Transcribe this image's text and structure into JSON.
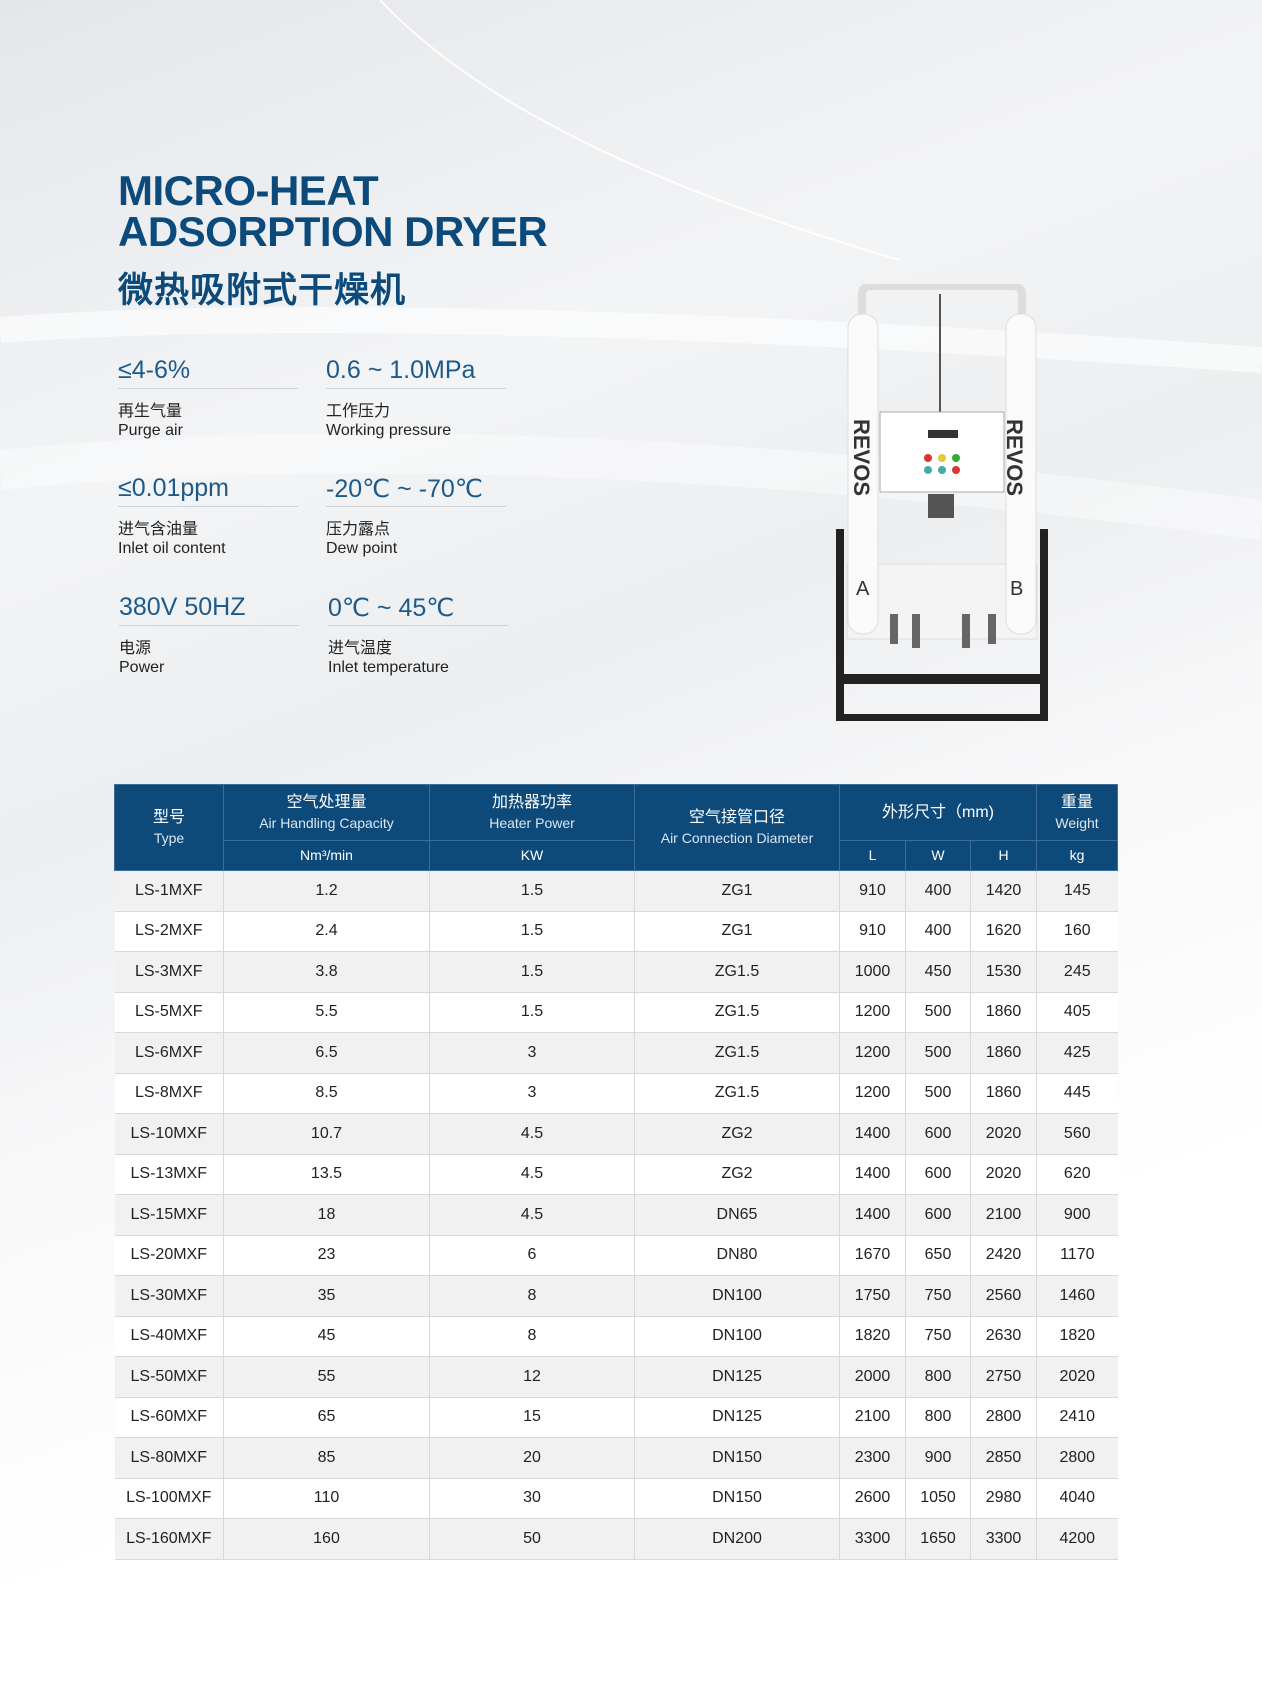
{
  "title": {
    "line1": "MICRO-HEAT",
    "line2": "ADSORPTION DRYER",
    "cn": "微热吸附式干燥机"
  },
  "specs": [
    {
      "value": "≤4-6%",
      "cn": "再生气量",
      "en": "Purge air"
    },
    {
      "value": "0.6 ~ 1.0MPa",
      "cn": "工作压力",
      "en": "Working pressure"
    },
    {
      "value": "≤0.01ppm",
      "cn": "进气含油量",
      "en": "Inlet oil content"
    },
    {
      "value": "-20℃ ~ -70℃",
      "cn": "压力露点",
      "en": "Dew point"
    },
    {
      "value": "380V 50HZ",
      "cn": "电源",
      "en": "Power"
    },
    {
      "value": "0℃ ~ 45℃",
      "cn": "进气温度",
      "en": "Inlet temperature"
    }
  ],
  "product": {
    "brand": "REVOS",
    "tower_a": "A",
    "tower_b": "B"
  },
  "table": {
    "headers": {
      "type": {
        "cn": "型号",
        "en": "Type"
      },
      "capacity": {
        "cn": "空气处理量",
        "en": "Air Handling Capacity",
        "unit": "Nm³/min"
      },
      "heater": {
        "cn": "加热器功率",
        "en": "Heater Power",
        "unit": "KW"
      },
      "connection": {
        "cn": "空气接管口径",
        "en": "Air Connection Diameter"
      },
      "dimensions": {
        "cn": "外形尺寸（mm)",
        "l": "L",
        "w": "W",
        "h": "H"
      },
      "weight": {
        "cn": "重量",
        "en": "Weight",
        "unit": "kg"
      }
    },
    "rows": [
      [
        "LS-1MXF",
        "1.2",
        "1.5",
        "ZG1",
        "910",
        "400",
        "1420",
        "145"
      ],
      [
        "LS-2MXF",
        "2.4",
        "1.5",
        "ZG1",
        "910",
        "400",
        "1620",
        "160"
      ],
      [
        "LS-3MXF",
        "3.8",
        "1.5",
        "ZG1.5",
        "1000",
        "450",
        "1530",
        "245"
      ],
      [
        "LS-5MXF",
        "5.5",
        "1.5",
        "ZG1.5",
        "1200",
        "500",
        "1860",
        "405"
      ],
      [
        "LS-6MXF",
        "6.5",
        "3",
        "ZG1.5",
        "1200",
        "500",
        "1860",
        "425"
      ],
      [
        "LS-8MXF",
        "8.5",
        "3",
        "ZG1.5",
        "1200",
        "500",
        "1860",
        "445"
      ],
      [
        "LS-10MXF",
        "10.7",
        "4.5",
        "ZG2",
        "1400",
        "600",
        "2020",
        "560"
      ],
      [
        "LS-13MXF",
        "13.5",
        "4.5",
        "ZG2",
        "1400",
        "600",
        "2020",
        "620"
      ],
      [
        "LS-15MXF",
        "18",
        "4.5",
        "DN65",
        "1400",
        "600",
        "2100",
        "900"
      ],
      [
        "LS-20MXF",
        "23",
        "6",
        "DN80",
        "1670",
        "650",
        "2420",
        "1170"
      ],
      [
        "LS-30MXF",
        "35",
        "8",
        "DN100",
        "1750",
        "750",
        "2560",
        "1460"
      ],
      [
        "LS-40MXF",
        "45",
        "8",
        "DN100",
        "1820",
        "750",
        "2630",
        "1820"
      ],
      [
        "LS-50MXF",
        "55",
        "12",
        "DN125",
        "2000",
        "800",
        "2750",
        "2020"
      ],
      [
        "LS-60MXF",
        "65",
        "15",
        "DN125",
        "2100",
        "800",
        "2800",
        "2410"
      ],
      [
        "LS-80MXF",
        "85",
        "20",
        "DN150",
        "2300",
        "900",
        "2850",
        "2800"
      ],
      [
        "LS-100MXF",
        "110",
        "30",
        "DN150",
        "2600",
        "1050",
        "2980",
        "4040"
      ],
      [
        "LS-160MXF",
        "160",
        "50",
        "DN200",
        "3300",
        "1650",
        "3300",
        "4200"
      ]
    ]
  }
}
